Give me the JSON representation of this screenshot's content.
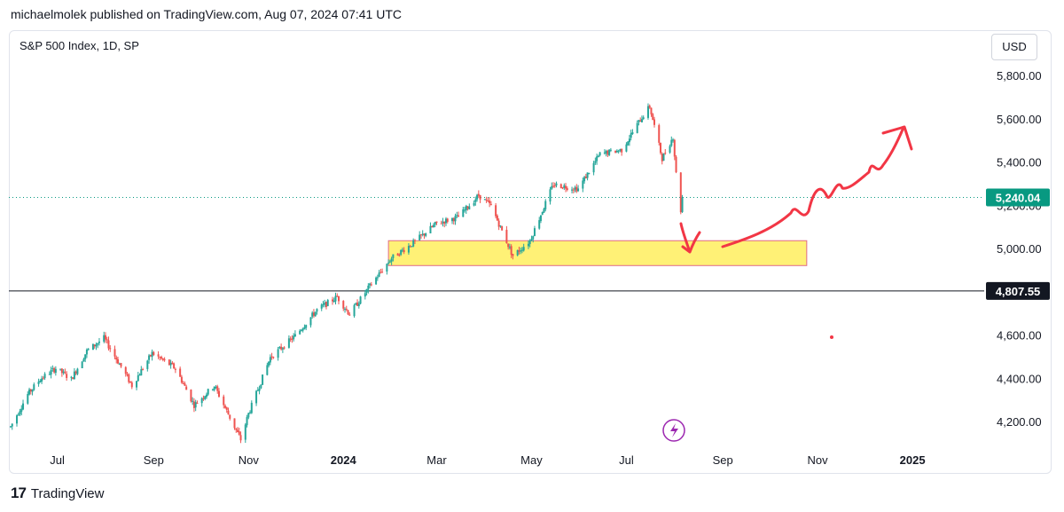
{
  "header": {
    "published": "michaelmolek published on TradingView.com, Aug 07, 2024 07:41 UTC"
  },
  "chart_header": {
    "symbol": "S&P 500 Index, 1D, SP",
    "currency": "USD"
  },
  "footer": {
    "brand": "TradingView",
    "logo": "17"
  },
  "colors": {
    "up": "#26a69a",
    "down": "#ef5350",
    "zone_fill": "#fff176",
    "zone_border": "#e06b88",
    "drawing": "#f23645",
    "last_price_bg": "#089981",
    "level_line": "#131722",
    "lightning": "#9c27b0"
  },
  "chart_data": {
    "type": "candlestick",
    "instrument": "S&P 500 Index",
    "interval": "1D",
    "ylim": [
      4100,
      5950
    ],
    "y_ticks": [
      "5,800.00",
      "5,600.00",
      "5,400.00",
      "5,200.00",
      "5,000.00",
      "4,600.00",
      "4,400.00",
      "4,200.00"
    ],
    "y_tick_values": [
      5800,
      5600,
      5400,
      5200,
      5000,
      4600,
      4400,
      4200
    ],
    "x_ticks": [
      "Jul",
      "Sep",
      "Nov",
      "2024",
      "Mar",
      "May",
      "Jul",
      "Sep",
      "Nov",
      "2025"
    ],
    "last_price": {
      "value": 5240.04,
      "label": "5,240.04"
    },
    "horizontal_level": {
      "value": 4807.55,
      "label": "4,807.55"
    },
    "support_zone": {
      "low": 4925,
      "high": 5040,
      "from": "2024-01-30",
      "to": "2024-10-25"
    },
    "price_path": [
      [
        "2023-06-01",
        4180
      ],
      [
        "2023-06-12",
        4330
      ],
      [
        "2023-06-20",
        4400
      ],
      [
        "2023-06-30",
        4450
      ],
      [
        "2023-07-10",
        4400
      ],
      [
        "2023-07-20",
        4530
      ],
      [
        "2023-07-31",
        4590
      ],
      [
        "2023-08-10",
        4470
      ],
      [
        "2023-08-18",
        4370
      ],
      [
        "2023-08-31",
        4520
      ],
      [
        "2023-09-15",
        4450
      ],
      [
        "2023-09-27",
        4280
      ],
      [
        "2023-10-10",
        4370
      ],
      [
        "2023-10-27",
        4120
      ],
      [
        "2023-11-01",
        4240
      ],
      [
        "2023-11-15",
        4500
      ],
      [
        "2023-12-01",
        4600
      ],
      [
        "2023-12-15",
        4720
      ],
      [
        "2023-12-28",
        4780
      ],
      [
        "2024-01-05",
        4700
      ],
      [
        "2024-01-19",
        4840
      ],
      [
        "2024-02-01",
        4960
      ],
      [
        "2024-02-15",
        5030
      ],
      [
        "2024-03-01",
        5120
      ],
      [
        "2024-03-15",
        5150
      ],
      [
        "2024-03-28",
        5250
      ],
      [
        "2024-04-05",
        5200
      ],
      [
        "2024-04-19",
        4970
      ],
      [
        "2024-04-30",
        5040
      ],
      [
        "2024-05-15",
        5300
      ],
      [
        "2024-05-31",
        5280
      ],
      [
        "2024-06-14",
        5440
      ],
      [
        "2024-06-28",
        5460
      ],
      [
        "2024-07-10",
        5600
      ],
      [
        "2024-07-16",
        5660
      ],
      [
        "2024-07-24",
        5420
      ],
      [
        "2024-07-31",
        5520
      ],
      [
        "2024-08-02",
        5350
      ],
      [
        "2024-08-05",
        5180
      ],
      [
        "2024-08-06",
        5240
      ]
    ]
  }
}
